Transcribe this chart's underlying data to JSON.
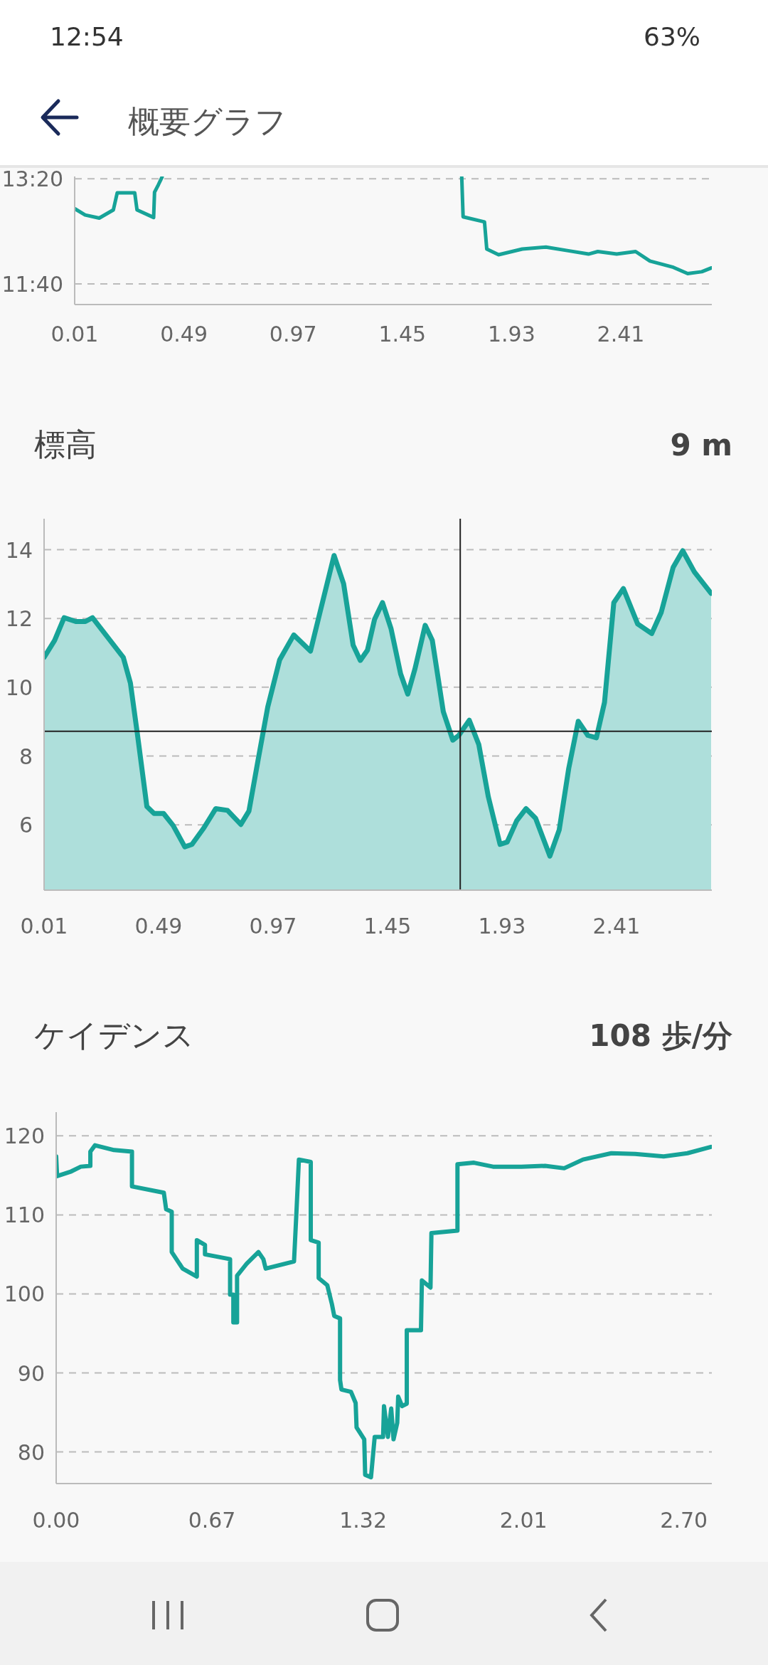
{
  "chart_data": [
    {
      "type": "line",
      "annotations": [
        "12:54",
        "63%",
        "概要グラフ"
      ],
      "xlim": [
        0.01,
        2.81
      ],
      "xticks": [
        0.01,
        0.49,
        0.97,
        1.45,
        1.93,
        2.41
      ],
      "ylim": [
        11.34,
        13.37
      ],
      "yticks": [
        {
          "value": 11.667,
          "label": "11:40"
        },
        {
          "value": 13.333,
          "label": "13:20"
        }
      ],
      "grid": "y",
      "series": [
        {
          "color": "#17a398",
          "x": [
            0.01,
            0.056,
            0.118,
            0.18,
            0.197,
            0.274,
            0.284,
            0.357,
            0.361,
            0.378,
            0.394
          ],
          "values": [
            12.86,
            12.76,
            12.71,
            12.84,
            13.11,
            13.11,
            12.84,
            12.72,
            13.12,
            13.24,
            13.36
          ]
        },
        {
          "color": "#17a398",
          "x": [
            1.711,
            1.717,
            1.811,
            1.821,
            1.873,
            1.977,
            2.081,
            2.184,
            2.268,
            2.309,
            2.392,
            2.475,
            2.538,
            2.641,
            2.704,
            2.766,
            2.807
          ],
          "values": [
            13.36,
            12.73,
            12.65,
            12.22,
            12.13,
            12.22,
            12.25,
            12.19,
            12.14,
            12.18,
            12.14,
            12.18,
            12.03,
            11.93,
            11.83,
            11.86,
            11.92
          ]
        }
      ]
    },
    {
      "type": "area",
      "title": "標高",
      "annotations": [
        "9 m"
      ],
      "xlim": [
        0.01,
        2.81
      ],
      "xticks": [
        0.01,
        0.49,
        0.97,
        1.45,
        1.93,
        2.41
      ],
      "ylim": [
        4.1,
        14.9
      ],
      "yticks": [
        6,
        8,
        10,
        12,
        14
      ],
      "grid": "y",
      "ref_lines": [
        {
          "axis": "x",
          "value": 1.755,
          "color": "#222222"
        },
        {
          "axis": "y",
          "value": 8.72,
          "color": "#222222"
        }
      ],
      "series": [
        {
          "color": "#17a398",
          "x": [
            0.01,
            0.054,
            0.094,
            0.143,
            0.183,
            0.213,
            0.342,
            0.372,
            0.402,
            0.441,
            0.471,
            0.511,
            0.551,
            0.6,
            0.63,
            0.68,
            0.73,
            0.779,
            0.835,
            0.869,
            0.908,
            0.948,
            0.998,
            1.057,
            1.127,
            1.167,
            1.226,
            1.266,
            1.306,
            1.336,
            1.366,
            1.396,
            1.429,
            1.465,
            1.505,
            1.535,
            1.565,
            1.608,
            1.638,
            1.684,
            1.724,
            1.749,
            1.793,
            1.833,
            1.873,
            1.922,
            1.952,
            1.992,
            2.031,
            2.071,
            2.131,
            2.17,
            2.21,
            2.25,
            2.29,
            2.326,
            2.36,
            2.399,
            2.439,
            2.499,
            2.558,
            2.598,
            2.648,
            2.688,
            2.737,
            2.807
          ],
          "values": [
            10.87,
            11.36,
            12.02,
            11.91,
            11.91,
            12.02,
            10.87,
            10.12,
            8.6,
            6.53,
            6.33,
            6.33,
            5.98,
            5.36,
            5.43,
            5.91,
            6.47,
            6.42,
            6.01,
            6.4,
            7.91,
            9.43,
            10.8,
            11.52,
            11.05,
            12.18,
            13.83,
            13.01,
            11.22,
            10.78,
            11.08,
            11.98,
            12.46,
            11.7,
            10.39,
            9.8,
            10.53,
            11.8,
            11.36,
            9.29,
            8.46,
            8.6,
            9.04,
            8.33,
            6.81,
            5.43,
            5.5,
            6.12,
            6.47,
            6.19,
            5.09,
            5.85,
            7.64,
            9.01,
            8.6,
            8.53,
            9.56,
            12.46,
            12.87,
            11.84,
            11.56,
            12.18,
            13.49,
            13.97,
            13.35,
            12.73
          ]
        }
      ]
    },
    {
      "type": "line",
      "title": "ケイデンス",
      "annotations": [
        "108 歩/分"
      ],
      "xlim": [
        0,
        2.82
      ],
      "xticks": [
        {
          "value": 0,
          "label": "0.00"
        },
        {
          "value": 0.67,
          "label": "0.67"
        },
        {
          "value": 1.32,
          "label": "1.32"
        },
        {
          "value": 2.01,
          "label": "2.01"
        },
        {
          "value": 2.7,
          "label": "2.70"
        }
      ],
      "ylim": [
        76,
        123
      ],
      "yticks": [
        80,
        90,
        100,
        110,
        120
      ],
      "grid": "y",
      "series": [
        {
          "color": "#17a398",
          "x": [
            0,
            0.004,
            0.065,
            0.106,
            0.147,
            0.147,
            0.167,
            0.249,
            0.326,
            0.326,
            0.463,
            0.473,
            0.497,
            0.497,
            0.544,
            0.605,
            0.605,
            0.64,
            0.64,
            0.748,
            0.748,
            0.762,
            0.762,
            0.778,
            0.778,
            0.819,
            0.87,
            0.891,
            0.901,
            1.023,
            1.033,
            1.044,
            1.095,
            1.095,
            1.129,
            1.129,
            1.166,
            1.186,
            1.196,
            1.221,
            1.221,
            1.227,
            1.268,
            1.288,
            1.292,
            1.325,
            1.329,
            1.354,
            1.37,
            1.406,
            1.41,
            1.427,
            1.441,
            1.451,
            1.467,
            1.471,
            1.488,
            1.508,
            1.508,
            1.569,
            1.573,
            1.61,
            1.614,
            1.726,
            1.726,
            1.797,
            1.879,
            2.001,
            2.103,
            2.185,
            2.266,
            2.388,
            2.49,
            2.613,
            2.715,
            2.816
          ],
          "values": [
            117.4,
            114.9,
            115.5,
            116.1,
            116.2,
            118.0,
            118.8,
            118.2,
            118.0,
            113.6,
            112.8,
            110.7,
            110.4,
            105.3,
            103.2,
            102.2,
            106.8,
            106.2,
            105.0,
            104.4,
            99.9,
            99.9,
            96.4,
            96.4,
            102.3,
            103.8,
            105.3,
            104.4,
            103.2,
            104.1,
            110.1,
            117.0,
            116.7,
            106.8,
            106.5,
            102.0,
            101.1,
            98.7,
            97.2,
            96.9,
            89.1,
            87.9,
            87.6,
            86.2,
            83.1,
            81.6,
            77.1,
            76.8,
            81.9,
            81.9,
            85.8,
            81.9,
            85.5,
            81.6,
            83.7,
            87.0,
            85.8,
            86.1,
            95.4,
            95.4,
            101.7,
            100.8,
            107.7,
            108.0,
            116.4,
            116.6,
            116.1,
            116.1,
            116.2,
            115.9,
            117.0,
            117.8,
            117.7,
            117.4,
            117.8,
            118.6
          ]
        }
      ]
    }
  ]
}
